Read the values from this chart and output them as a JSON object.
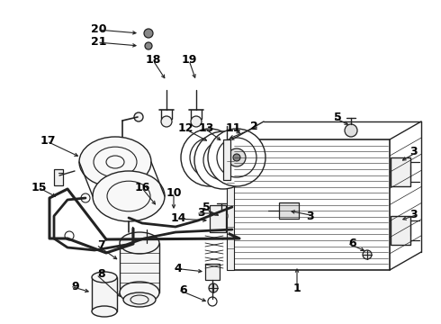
{
  "bg_color": "#ffffff",
  "line_color": "#222222",
  "label_color": "#000000",
  "figsize": [
    4.9,
    3.6
  ],
  "dpi": 100,
  "label_fontsize": 9,
  "label_fontweight": "bold"
}
